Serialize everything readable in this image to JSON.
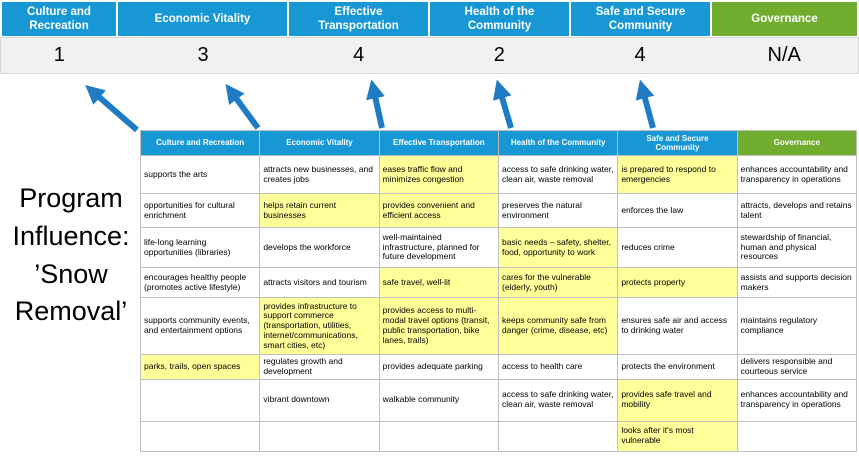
{
  "pillars": [
    {
      "name": "Culture and Recreation",
      "score": "1"
    },
    {
      "name": "Economic Vitality",
      "score": "3"
    },
    {
      "name": "Effective Transportation",
      "score": "4"
    },
    {
      "name": "Health of the Community",
      "score": "2"
    },
    {
      "name": "Safe and Secure Community",
      "score": "4"
    },
    {
      "name": "Governance",
      "score": "N/A"
    }
  ],
  "program_influence_label": "Program Influence: ’Snow Removal’",
  "table": {
    "headers": [
      "Culture and Recreation",
      "Economic Vitality",
      "Effective Transportation",
      "Health of the Community",
      "Safe and Secure Community",
      "Governance"
    ],
    "rows": [
      [
        {
          "text": "supports the arts",
          "highlight": false
        },
        {
          "text": "attracts new businesses, and creates jobs",
          "highlight": false
        },
        {
          "text": "eases traffic flow and minimizes congestion",
          "highlight": true
        },
        {
          "text": "access to safe drinking water, clean air, waste removal",
          "highlight": false
        },
        {
          "text": "is prepared to respond to emergencies",
          "highlight": true
        },
        {
          "text": "enhances accountability and transparency in operations",
          "highlight": false
        }
      ],
      [
        {
          "text": "opportunities for cultural enrichment",
          "highlight": false
        },
        {
          "text": "helps retain current businesses",
          "highlight": true
        },
        {
          "text": "provides convenient and efficient access",
          "highlight": true
        },
        {
          "text": "preserves the natural environment",
          "highlight": false
        },
        {
          "text": "enforces the law",
          "highlight": false
        },
        {
          "text": "attracts, develops and retains talent",
          "highlight": false
        }
      ],
      [
        {
          "text": "life-long learning opportunities (libraries)",
          "highlight": false
        },
        {
          "text": "develops the workforce",
          "highlight": false
        },
        {
          "text": "well-maintained infrastructure, planned for future development",
          "highlight": false
        },
        {
          "text": "basic needs – safety, shelter, food, opportunity to work",
          "highlight": true
        },
        {
          "text": "reduces crime",
          "highlight": false
        },
        {
          "text": "stewardship of financial, human and physical resources",
          "highlight": false
        }
      ],
      [
        {
          "text": "encourages healthy people (promotes active lifestyle)",
          "highlight": false
        },
        {
          "text": "attracts visitors and tourism",
          "highlight": false
        },
        {
          "text": "safe travel, well-lit",
          "highlight": true
        },
        {
          "text": "cares for the vulnerable (elderly, youth)",
          "highlight": true
        },
        {
          "text": "protects property",
          "highlight": true
        },
        {
          "text": "assists and supports decision makers",
          "highlight": false
        }
      ],
      [
        {
          "text": "supports community events, and entertainment options",
          "highlight": false
        },
        {
          "text": "provides infrastructure to support commerce (transportation, utilities, internet/communications, smart cities, etc)",
          "highlight": true
        },
        {
          "text": "provides access to multi-modal travel options (transit, public transportation, bike lanes, trails)",
          "highlight": true
        },
        {
          "text": "keeps community safe from danger (crime, disease, etc)",
          "highlight": true
        },
        {
          "text": "ensures safe air and access to drinking water",
          "highlight": false
        },
        {
          "text": "maintains regulatory compliance",
          "highlight": false
        }
      ],
      [
        {
          "text": "parks, trails, open spaces",
          "highlight": true
        },
        {
          "text": "regulates growth and development",
          "highlight": false
        },
        {
          "text": "provides adequate parking",
          "highlight": false
        },
        {
          "text": "access to health care",
          "highlight": false
        },
        {
          "text": "protects the environment",
          "highlight": false
        },
        {
          "text": "delivers responsible and courteous service",
          "highlight": false
        }
      ],
      [
        {
          "text": "",
          "highlight": false
        },
        {
          "text": "vibrant downtown",
          "highlight": false
        },
        {
          "text": "walkable community",
          "highlight": false
        },
        {
          "text": "access to safe drinking water, clean air, waste removal",
          "highlight": false
        },
        {
          "text": "provides safe travel and mobility",
          "highlight": true
        },
        {
          "text": "enhances accountability and transparency in operations",
          "highlight": false
        }
      ],
      [
        {
          "text": "",
          "highlight": false
        },
        {
          "text": "",
          "highlight": false
        },
        {
          "text": "",
          "highlight": false
        },
        {
          "text": "",
          "highlight": false
        },
        {
          "text": "looks after it's most vulnerable",
          "highlight": true
        },
        {
          "text": "",
          "highlight": false
        }
      ]
    ]
  },
  "colors": {
    "pillar_blue": "#1897D5",
    "governance_green": "#70AD2F",
    "highlight_yellow": "#FFFF99",
    "score_strip_gray": "#F1F1F1",
    "arrow_blue": "#1F7BC4",
    "table_border_gray": "#BFBFBF"
  }
}
